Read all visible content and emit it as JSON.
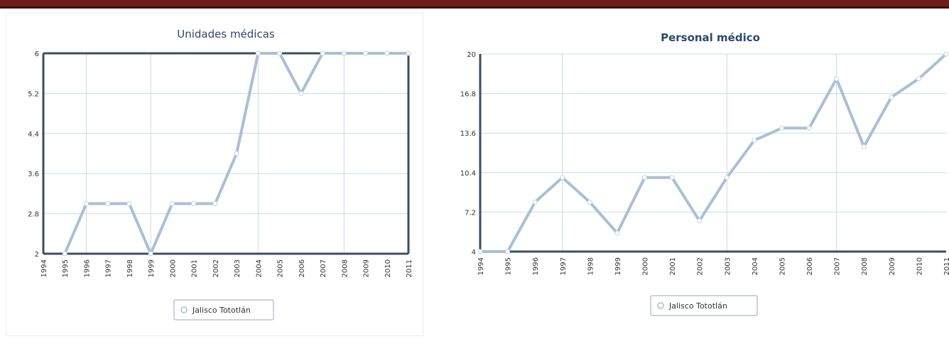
{
  "header": {
    "bar_color": "#6e1d17"
  },
  "chart_data": [
    {
      "type": "line",
      "title": "Unidades médicas",
      "x": [
        "1994",
        "1995",
        "1996",
        "1997",
        "1998",
        "1999",
        "2000",
        "2001",
        "2002",
        "2003",
        "2004",
        "2005",
        "2006",
        "2007",
        "2008",
        "2009",
        "2010",
        "2011"
      ],
      "series": [
        {
          "name": "Jalisco Tototlán",
          "values": [
            null,
            2,
            3,
            3,
            3,
            2,
            3,
            3,
            3,
            4,
            6,
            6,
            5.2,
            6,
            6,
            6,
            6,
            6
          ]
        }
      ],
      "y_ticks": [
        "2",
        "2.8",
        "3.6",
        "4.4",
        "5.2",
        "6"
      ],
      "ylim": [
        2,
        6
      ],
      "grid": true,
      "legend": "bottom-center",
      "line_color": "#a9bfd6"
    },
    {
      "type": "line",
      "title": "Personal médico",
      "x": [
        "1994",
        "1995",
        "1996",
        "1997",
        "1998",
        "1999",
        "2000",
        "2001",
        "2002",
        "2003",
        "2004",
        "2005",
        "2006",
        "2007",
        "2008",
        "2009",
        "2010",
        "2011"
      ],
      "series": [
        {
          "name": "Jalisco Tototlán",
          "values": [
            4,
            4,
            8,
            10,
            8,
            5.5,
            10,
            10,
            6.5,
            10,
            13,
            14,
            14,
            18,
            12.5,
            16.5,
            18,
            20
          ]
        }
      ],
      "y_ticks": [
        "4",
        "7.2",
        "10.4",
        "13.6",
        "16.8",
        "20"
      ],
      "ylim": [
        4,
        20
      ],
      "grid": true,
      "legend": "bottom-center",
      "line_color": "#a9bfd6"
    }
  ]
}
